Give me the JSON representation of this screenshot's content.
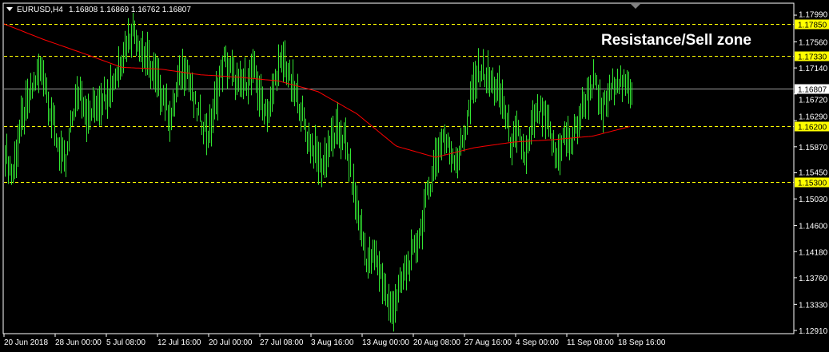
{
  "header": {
    "symbol": "EURUSD,H4",
    "ohlc": "1.16808 1.16869 1.16762 1.16807"
  },
  "annotation": "Resistance/Sell zone",
  "colors": {
    "background": "#000000",
    "bars": "#32e632",
    "moving_average": "#ff0000",
    "level_lines": "#ffff00",
    "current_price_line": "#a0a0a0",
    "grid_border": "#ffffff"
  },
  "chart_data": {
    "type": "bar",
    "symbol": "EURUSD",
    "timeframe": "H4",
    "ylim": [
      1.1291,
      1.1799
    ],
    "y_ticks": [
      "1.17990",
      "1.17560",
      "1.17140",
      "1.16720",
      "1.16290",
      "1.15870",
      "1.15450",
      "1.15030",
      "1.14600",
      "1.14180",
      "1.13760",
      "1.13330",
      "1.12910"
    ],
    "x_ticks": [
      "20 Jun 2018",
      "28 Jun 00:00",
      "5 Jul 08:00",
      "12 Jul 16:00",
      "20 Jul 00:00",
      "27 Jul 08:00",
      "3 Aug 16:00",
      "13 Aug 00:00",
      "20 Aug 08:00",
      "27 Aug 16:00",
      "4 Sep 00:00",
      "11 Sep 08:00",
      "18 Sep 16:00"
    ],
    "levels": [
      {
        "price": "1.17850",
        "style": "dashed",
        "color": "#ffff00"
      },
      {
        "price": "1.17330",
        "style": "dashed",
        "color": "#ffff00"
      },
      {
        "price": "1.16200",
        "style": "dashed",
        "color": "#ffff00"
      },
      {
        "price": "1.15300",
        "style": "dashed",
        "color": "#ffff00"
      }
    ],
    "current_price": "1.16807",
    "price_path": [
      1.15791,
      1.15405,
      1.16177,
      1.16563,
      1.16948,
      1.17141,
      1.16434,
      1.1592,
      1.15534,
      1.16434,
      1.1682,
      1.16305,
      1.16563,
      1.16691,
      1.1682,
      1.17141,
      1.17527,
      1.17784,
      1.17463,
      1.17206,
      1.16948,
      1.16691,
      1.16305,
      1.16948,
      1.17206,
      1.16563,
      1.16305,
      1.16048,
      1.16691,
      1.1727,
      1.17077,
      1.1682,
      1.16948,
      1.17077,
      1.16563,
      1.16434,
      1.17077,
      1.1727,
      1.1682,
      1.16563,
      1.16048,
      1.15791,
      1.15534,
      1.1592,
      1.16112,
      1.15984,
      1.15277,
      1.14634,
      1.1399,
      1.14119,
      1.13733,
      1.13219,
      1.13476,
      1.13862,
      1.14119,
      1.14505,
      1.15148,
      1.15662,
      1.16048,
      1.15791,
      1.15662,
      1.16177,
      1.1682,
      1.17141,
      1.16948,
      1.1682,
      1.16563,
      1.1592,
      1.16048,
      1.15662,
      1.16305,
      1.16434,
      1.16177,
      1.15662,
      1.16048,
      1.1592,
      1.16305,
      1.16691,
      1.16948,
      1.16434,
      1.16691,
      1.17013,
      1.1682,
      1.16807
    ],
    "moving_average": [
      1.1785,
      1.176,
      1.1738,
      1.1715,
      1.1712,
      1.1703,
      1.1699,
      1.1693,
      1.1676,
      1.164,
      1.1588,
      1.157,
      1.15856,
      1.15946,
      1.15984,
      1.1604,
      1.16202
    ]
  }
}
